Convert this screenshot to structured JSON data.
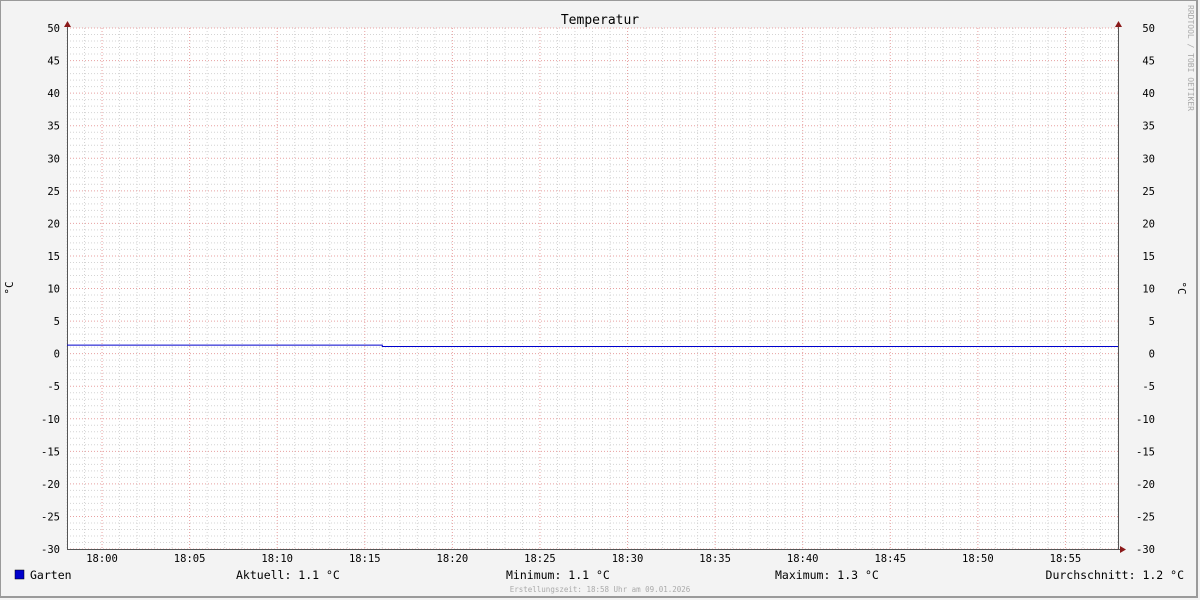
{
  "chart_data": {
    "type": "line",
    "title": "Temperatur",
    "ylabel": "°C",
    "ylabel_right": "°C",
    "ylim": [
      -30,
      50
    ],
    "y_ticks": [
      50,
      45,
      40,
      35,
      30,
      25,
      20,
      15,
      10,
      5,
      0,
      -5,
      -10,
      -15,
      -20,
      -25,
      -30
    ],
    "xlim": [
      "17:58",
      "18:58"
    ],
    "x_ticks": [
      "18:00",
      "18:05",
      "18:10",
      "18:15",
      "18:20",
      "18:25",
      "18:30",
      "18:35",
      "18:40",
      "18:45",
      "18:50",
      "18:55"
    ],
    "grid": true,
    "series": [
      {
        "name": "Garten",
        "color": "#0000cc",
        "points": [
          [
            "17:58",
            1.3
          ],
          [
            "18:16",
            1.3
          ],
          [
            "18:16",
            1.1
          ],
          [
            "18:58",
            1.1
          ]
        ]
      }
    ],
    "legend": {
      "position": "bottom-left",
      "swatch_color": "#0000cc",
      "label": "Garten"
    },
    "stats": {
      "current": "Aktuell: 1.1 °C",
      "minimum": "Minimum: 1.1 °C",
      "maximum": "Maximum: 1.3 °C",
      "average": "Durchschnitt: 1.2 °C"
    },
    "footer": "Erstellungszeit: 18:58 Uhr am 09.01.2026",
    "watermark": "RRDTOOL / TOBI OETIKER"
  }
}
